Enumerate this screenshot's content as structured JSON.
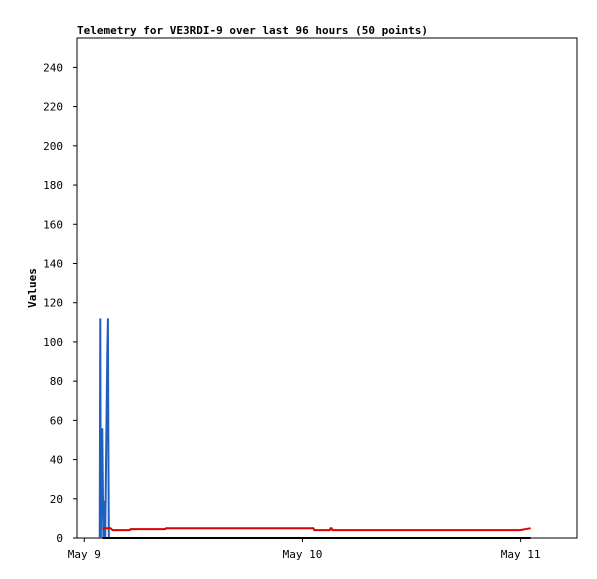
{
  "chart_data": {
    "type": "line",
    "title": "Telemetry for VE3RDI-9 over last 96 hours (50 points)",
    "ylabel": "Values",
    "xlim": [
      -0.8,
      54.2
    ],
    "ylim": [
      0,
      255
    ],
    "xticks": [
      {
        "value": 0,
        "label": "May 9"
      },
      {
        "value": 24,
        "label": "May 10"
      },
      {
        "value": 48,
        "label": "May 11"
      }
    ],
    "yticks": [
      0,
      20,
      40,
      60,
      80,
      100,
      120,
      140,
      160,
      180,
      200,
      220,
      240
    ],
    "grid": false,
    "series": [
      {
        "color": "#1f5fbf",
        "x": [
          1.7,
          1.76,
          1.82,
          1.98,
          2.1,
          2.2,
          2.3,
          2.53,
          2.6,
          2.64,
          2.7
        ],
        "values": [
          0,
          112,
          0,
          56,
          0,
          19,
          0,
          93,
          112,
          56,
          0
        ]
      },
      {
        "color": "#000000",
        "x": [
          2.0,
          49.1
        ],
        "values": [
          0,
          0
        ]
      },
      {
        "color": "#dd0000",
        "x": [
          2.0,
          2.9,
          3.1,
          5.0,
          5.1,
          8.9,
          9.0,
          25.2,
          25.3,
          27.0,
          27.1,
          27.2,
          27.3,
          47.9,
          48.5,
          49.1
        ],
        "values": [
          5,
          5,
          4,
          4,
          4.5,
          4.5,
          5,
          5,
          4,
          4,
          5,
          5,
          4,
          4,
          4.5,
          5
        ]
      }
    ]
  }
}
